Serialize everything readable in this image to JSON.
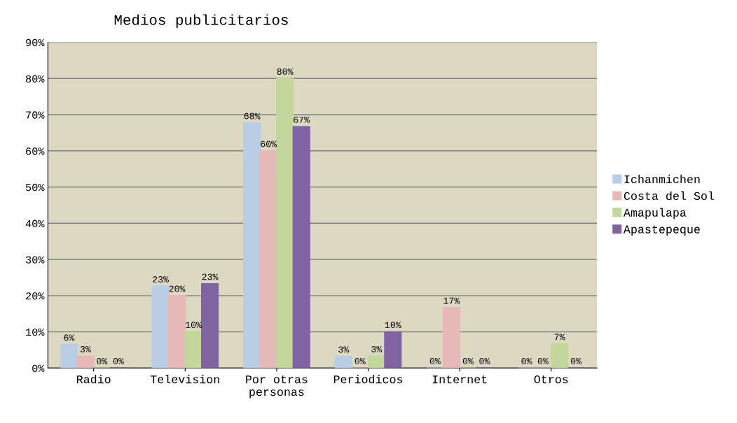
{
  "chart_data": {
    "type": "bar",
    "title": "Medios publicitarios",
    "categories": [
      "Radio",
      "Television",
      "Por otras\npersonas",
      "Periodicos",
      "Internet",
      "Otros"
    ],
    "series": [
      {
        "name": "Ichanmichen",
        "color": "#b9cde5",
        "values": [
          6.5,
          22.6,
          67.7,
          3.2,
          0,
          0
        ],
        "value_labels": [
          "6%",
          "23%",
          "68%",
          "3%",
          "0%",
          "0%"
        ]
      },
      {
        "name": "Costa del Sol",
        "color": "#e6b9b8",
        "values": [
          3.3,
          20,
          60,
          0,
          16.7,
          0
        ],
        "value_labels": [
          "3%",
          "20%",
          "60%",
          "0%",
          "17%",
          "0%"
        ]
      },
      {
        "name": "Amapulapa",
        "color": "#c3d69b",
        "values": [
          0,
          10,
          80,
          3.3,
          0,
          6.7
        ],
        "value_labels": [
          "0%",
          "10%",
          "80%",
          "3%",
          "0%",
          "7%"
        ]
      },
      {
        "name": "Apastepeque",
        "color": "#8064a2",
        "values": [
          0,
          23.3,
          66.7,
          10,
          0,
          0
        ],
        "value_labels": [
          "0%",
          "23%",
          "67%",
          "10%",
          "0%",
          "0%"
        ]
      }
    ],
    "ylim": [
      0,
      90
    ],
    "yticks": [
      {
        "value": 0,
        "label": "0%"
      },
      {
        "value": 10,
        "label": "10%"
      },
      {
        "value": 20,
        "label": "20%"
      },
      {
        "value": 30,
        "label": "30%"
      },
      {
        "value": 40,
        "label": "40%"
      },
      {
        "value": 50,
        "label": "50%"
      },
      {
        "value": 60,
        "label": "60%"
      },
      {
        "value": 70,
        "label": "70%"
      },
      {
        "value": 80,
        "label": "80%"
      },
      {
        "value": 90,
        "label": "90%"
      }
    ],
    "grid": "y",
    "legend": "right"
  }
}
